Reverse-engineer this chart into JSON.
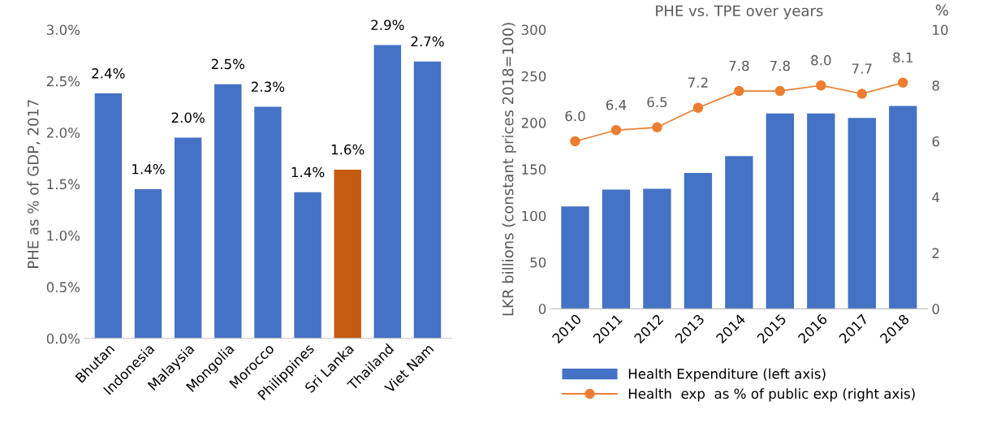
{
  "chart_data": [
    {
      "type": "bar",
      "ylabel": "PHE as % of GDP, 2017",
      "categories": [
        "Bhutan",
        "Indonesia",
        "Malaysia",
        "Mongolia",
        "Morocco",
        "Philippines",
        "Sri Lanka",
        "Thailand",
        "Viet Nam"
      ],
      "values": [
        2.38,
        1.45,
        1.95,
        2.47,
        2.25,
        1.42,
        1.64,
        2.85,
        2.69
      ],
      "value_labels": [
        "2.4%",
        "1.4%",
        "2.0%",
        "2.5%",
        "2.3%",
        "1.4%",
        "1.6%",
        "2.9%",
        "2.7%"
      ],
      "colors": [
        "#4472c4",
        "#4472c4",
        "#4472c4",
        "#4472c4",
        "#4472c4",
        "#4472c4",
        "#c55a11",
        "#4472c4",
        "#4472c4"
      ],
      "ylim": [
        0,
        3
      ],
      "yticks": [
        {
          "value": 0,
          "label": "0.0%"
        },
        {
          "value": 0.5,
          "label": "0.5%"
        },
        {
          "value": 1,
          "label": "1.0%"
        },
        {
          "value": 1.5,
          "label": "1.5%"
        },
        {
          "value": 2,
          "label": "2.0%"
        },
        {
          "value": 2.5,
          "label": "2.5%"
        },
        {
          "value": 3,
          "label": "3.0%"
        }
      ],
      "grid": false,
      "legend": false
    },
    {
      "type": "bar",
      "title": "PHE vs. TPE over years",
      "ylabel": "LKR billions (constant prices 2018=100)",
      "y2label": "%",
      "categories": [
        "2010",
        "2011",
        "2012",
        "2013",
        "2014",
        "2015",
        "2016",
        "2017",
        "2018"
      ],
      "series": [
        {
          "name": "Health Expenditure (left axis)",
          "color": "#4472c4",
          "type": "bar",
          "values": [
            110,
            128,
            129,
            146,
            164,
            210,
            210,
            205,
            218
          ]
        },
        {
          "name": "Health  exp  as % of public exp (right axis)",
          "color": "#ed7d31",
          "type": "line",
          "axis": "y2",
          "marker": "circle",
          "values": [
            6.0,
            6.4,
            6.5,
            7.2,
            7.8,
            7.8,
            8.0,
            7.7,
            8.1
          ],
          "value_labels": [
            "6.0",
            "6.4",
            "6.5",
            "7.2",
            "7.8",
            "7.8",
            "8.0",
            "7.7",
            "8.1"
          ]
        }
      ],
      "ylim": [
        0,
        300
      ],
      "yticks": [
        0,
        50,
        100,
        150,
        200,
        250,
        300
      ],
      "y2lim": [
        0,
        10
      ],
      "y2ticks": [
        0,
        2,
        4,
        6,
        8,
        10
      ],
      "grid": false,
      "legend": "bottom"
    }
  ]
}
